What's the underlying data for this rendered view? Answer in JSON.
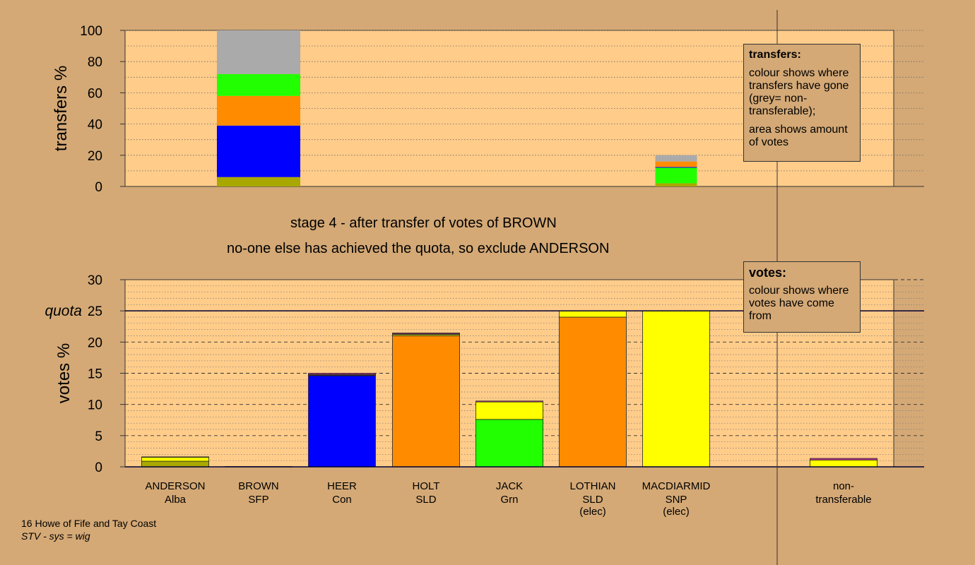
{
  "page": {
    "stage_line1": "stage 4 - after transfer of votes of BROWN",
    "stage_line2": "no-one else has achieved the quota, so exclude ANDERSON",
    "footer_line1": "16 Howe of Fife and Tay Coast",
    "footer_line2": "STV - sys = wig"
  },
  "legend_transfers": {
    "title": "transfers:",
    "text1": "colour shows where transfers have gone (grey= non-transferable);",
    "text2": "area shows amount of votes"
  },
  "legend_votes": {
    "title": "votes:",
    "text1": "colour shows where votes have come from"
  },
  "colors": {
    "background": "#d4a976",
    "plot_bg": "#ffcc8a",
    "Alba": "#a8a800",
    "SNP": "#ffff00",
    "Con": "#0000ff",
    "SLD": "#ff8c00",
    "Grn": "#22ff00",
    "SFP": "#cc3399",
    "nontransferable": "#aaaaaa",
    "line": "#000033"
  },
  "chart_data": [
    {
      "type": "bar",
      "name": "transfers",
      "ylabel": "transfers %",
      "ylim": [
        0,
        100
      ],
      "yticks": [
        0,
        20,
        40,
        60,
        80,
        100
      ],
      "categories": [
        "ANDERSON",
        "BROWN",
        "HEER",
        "HOLT",
        "JACK",
        "LOTHIAN",
        "MACDIARMID",
        "non-transferable"
      ],
      "bars": [
        {
          "category": "BROWN",
          "width_votes_pct": 0.1,
          "segments": [
            {
              "party": "Alba",
              "value": 6
            },
            {
              "party": "Con",
              "value": 33
            },
            {
              "party": "SLD",
              "value": 19
            },
            {
              "party": "Grn",
              "value": 14
            },
            {
              "party": "nontransferable",
              "value": 28
            }
          ]
        },
        {
          "category": "MACDIARMID",
          "width_votes_pct": 0.05,
          "segments": [
            {
              "party": "Alba",
              "value": 2
            },
            {
              "party": "Grn",
              "value": 10
            },
            {
              "party": "Con",
              "value": 0.5
            },
            {
              "party": "SLD",
              "value": 3.5
            },
            {
              "party": "nontransferable",
              "value": 4
            }
          ]
        }
      ]
    },
    {
      "type": "bar",
      "name": "votes",
      "ylabel": "votes %",
      "ylim": [
        0,
        30
      ],
      "yticks": [
        0,
        5,
        10,
        15,
        20,
        25,
        30
      ],
      "quota": 25,
      "quota_label": "quota",
      "categories": [
        {
          "name": "ANDERSON",
          "party": "Alba",
          "note": ""
        },
        {
          "name": "BROWN",
          "party": "SFP",
          "note": ""
        },
        {
          "name": "HEER",
          "party": "Con",
          "note": ""
        },
        {
          "name": "HOLT",
          "party": "SLD",
          "note": ""
        },
        {
          "name": "JACK",
          "party": "Grn",
          "note": ""
        },
        {
          "name": "LOTHIAN",
          "party": "SLD",
          "note": "(elec)"
        },
        {
          "name": "MACDIARMID",
          "party": "SNP",
          "note": "(elec)"
        }
      ],
      "nontransferable_label": [
        "non-",
        "transferable"
      ],
      "stacks": [
        [
          {
            "party": "Alba",
            "value": 0.9
          },
          {
            "party": "SNP",
            "value": 0.65
          },
          {
            "party": "SFP",
            "value": 0.05
          }
        ],
        [
          {
            "party": "SFP",
            "value": 0.05
          }
        ],
        [
          {
            "party": "Con",
            "value": 14.6
          },
          {
            "party": "SLD",
            "value": 0.1
          },
          {
            "party": "Grn",
            "value": 0.1
          },
          {
            "party": "SFP",
            "value": 0.2
          }
        ],
        [
          {
            "party": "SLD",
            "value": 21.0
          },
          {
            "party": "SNP",
            "value": 0.2
          },
          {
            "party": "Grn",
            "value": 0.1
          },
          {
            "party": "SFP",
            "value": 0.15
          }
        ],
        [
          {
            "party": "Grn",
            "value": 7.6
          },
          {
            "party": "SNP",
            "value": 2.8
          },
          {
            "party": "SFP",
            "value": 0.15
          }
        ],
        [
          {
            "party": "SLD",
            "value": 24.0
          },
          {
            "party": "SNP",
            "value": 1.0
          }
        ],
        [
          {
            "party": "SNP",
            "value": 25.0
          }
        ]
      ],
      "nontransferable_stack": [
        {
          "party": "SNP",
          "value": 1.1
        },
        {
          "party": "SFP",
          "value": 0.25
        }
      ]
    }
  ]
}
